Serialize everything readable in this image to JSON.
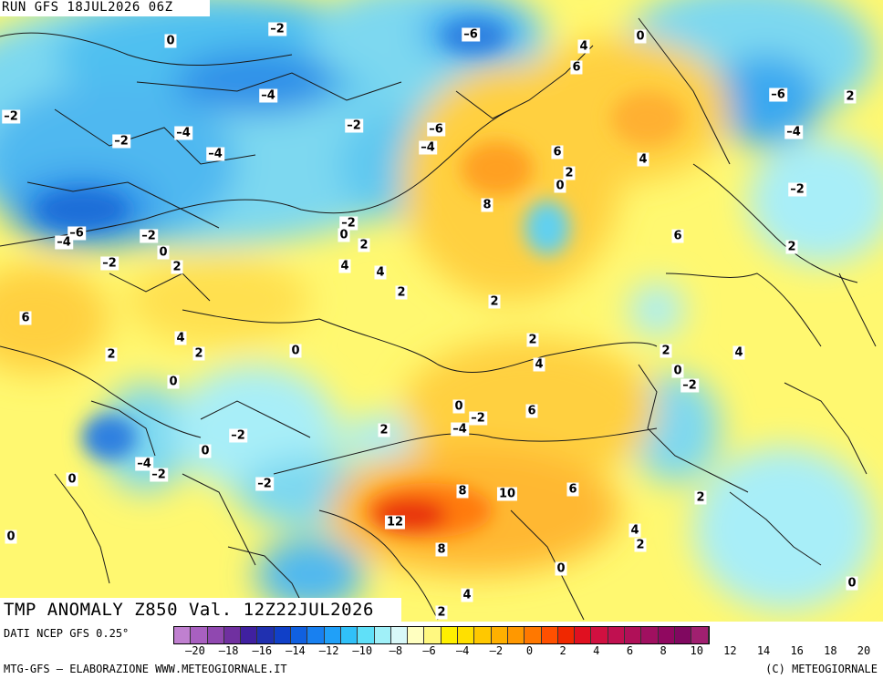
{
  "header": {
    "run": "RUN GFS 18JUL2026 06Z"
  },
  "title": "TMP ANOMALY Z850 Val. 12Z22JUL2026",
  "source": "DATI NCEP GFS 0.25°",
  "footer": {
    "left": "MTG-GFS – ELABORAZIONE WWW.METEOGIORNALE.IT",
    "right": "(C) METEOGIORNALE"
  },
  "colorbar": {
    "colors": [
      "#c080d0",
      "#a860c0",
      "#9048b0",
      "#7030a0",
      "#4020a0",
      "#2030b0",
      "#1040c8",
      "#1060e0",
      "#1880f0",
      "#20a0f8",
      "#30c0f8",
      "#60e0f8",
      "#a0f0f8",
      "#d8f8f8",
      "#ffffc0",
      "#fff880",
      "#fff000",
      "#ffe000",
      "#ffc800",
      "#ffb000",
      "#ff9800",
      "#ff7800",
      "#ff5000",
      "#f02800",
      "#e01020",
      "#d01040",
      "#c01050",
      "#b01058",
      "#a01060",
      "#900860",
      "#800860",
      "#a02070"
    ],
    "ticks": [
      "–20",
      "–18",
      "–16",
      "–14",
      "–12",
      "–10",
      "–8",
      "–6",
      "–4",
      "–2",
      "0",
      "2",
      "4",
      "6",
      "8",
      "10",
      "12",
      "14",
      "16",
      "18",
      "20"
    ]
  },
  "map_labels": [
    "0",
    "–2",
    "–6",
    "4",
    "6",
    "0",
    "–6",
    "2",
    "–2",
    "–4",
    "–4",
    "–2",
    "–2",
    "–6",
    "–4",
    "–4",
    "–2",
    "–4",
    "6",
    "4",
    "2",
    "0",
    "8",
    "–2",
    "0",
    "–6",
    "–4",
    "–2",
    "0",
    "2",
    "2",
    "4",
    "4",
    "6",
    "2",
    "–2",
    "2",
    "6",
    "4",
    "2",
    "2",
    "2",
    "0",
    "2",
    "0",
    "–2",
    "0",
    "4",
    "0",
    "2",
    "0",
    "–4",
    "–2",
    "6",
    "–2",
    "–4",
    "–2",
    "0",
    "–2",
    "0",
    "8",
    "10",
    "6",
    "2",
    "4",
    "2",
    "12",
    "8",
    "0",
    "4",
    "0",
    "2",
    "4",
    "2"
  ]
}
